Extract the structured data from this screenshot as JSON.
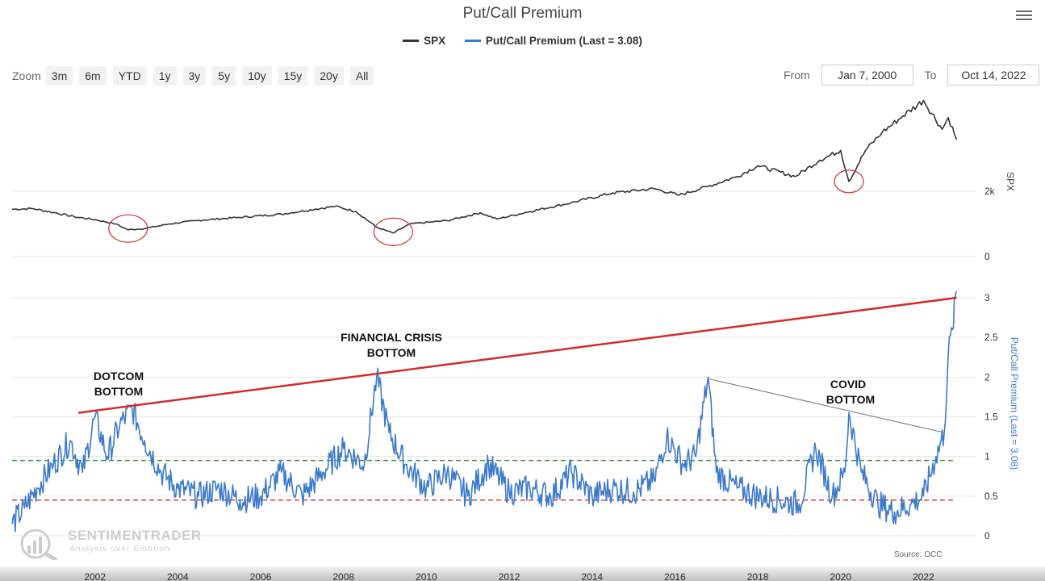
{
  "title": "Put/Call Premium",
  "legend": [
    {
      "name": "SPX",
      "color": "#333333"
    },
    {
      "name": "Put/Call Premium (Last = 3.08)",
      "color": "#3d7acb"
    }
  ],
  "zoom": {
    "label": "Zoom",
    "buttons": [
      "3m",
      "6m",
      "YTD",
      "1y",
      "3y",
      "5y",
      "10y",
      "15y",
      "20y",
      "All"
    ]
  },
  "range": {
    "from_label": "From",
    "from_value": "Jan 7, 2000",
    "to_label": "To",
    "to_value": "Oct 14, 2022"
  },
  "watermark": {
    "name": "SENTIMENTRADER",
    "tagline": "Analysis over Emotion"
  },
  "source": "Source: OCC",
  "chart_data": [
    {
      "type": "line",
      "series": [
        {
          "name": "SPX",
          "color": "#333333",
          "points": [
            [
              2000.0,
              1450
            ],
            [
              2000.5,
              1470
            ],
            [
              2001.0,
              1350
            ],
            [
              2001.5,
              1220
            ],
            [
              2002.0,
              1130
            ],
            [
              2002.5,
              1000
            ],
            [
              2002.8,
              820
            ],
            [
              2003.2,
              860
            ],
            [
              2003.8,
              1000
            ],
            [
              2004.5,
              1110
            ],
            [
              2005.5,
              1200
            ],
            [
              2006.5,
              1300
            ],
            [
              2007.3,
              1450
            ],
            [
              2007.8,
              1540
            ],
            [
              2008.3,
              1380
            ],
            [
              2008.8,
              900
            ],
            [
              2009.2,
              720
            ],
            [
              2009.6,
              1000
            ],
            [
              2010.5,
              1100
            ],
            [
              2011.3,
              1340
            ],
            [
              2011.7,
              1150
            ],
            [
              2012.5,
              1380
            ],
            [
              2013.5,
              1650
            ],
            [
              2014.5,
              1950
            ],
            [
              2015.5,
              2080
            ],
            [
              2016.1,
              1880
            ],
            [
              2016.8,
              2150
            ],
            [
              2017.5,
              2450
            ],
            [
              2018.0,
              2780
            ],
            [
              2018.9,
              2450
            ],
            [
              2019.5,
              2950
            ],
            [
              2020.0,
              3250
            ],
            [
              2020.2,
              2300
            ],
            [
              2020.6,
              3250
            ],
            [
              2021.0,
              3800
            ],
            [
              2021.5,
              4300
            ],
            [
              2022.0,
              4780
            ],
            [
              2022.45,
              3900
            ],
            [
              2022.6,
              4250
            ],
            [
              2022.8,
              3580
            ]
          ]
        }
      ],
      "ylabel": "SPX",
      "y_ticks": [
        "0",
        "2k"
      ],
      "ylim": [
        0,
        5400
      ]
    },
    {
      "type": "line",
      "series": [
        {
          "name": "Put/Call Premium (Last = 3.08)",
          "color": "#3d7acb",
          "points": [
            [
              2000.0,
              0.15
            ],
            [
              2000.3,
              0.35
            ],
            [
              2000.6,
              0.6
            ],
            [
              2001.0,
              0.9
            ],
            [
              2001.4,
              1.2
            ],
            [
              2001.7,
              0.8
            ],
            [
              2002.0,
              1.5
            ],
            [
              2002.3,
              1.0
            ],
            [
              2002.6,
              1.4
            ],
            [
              2002.9,
              1.6
            ],
            [
              2003.2,
              1.2
            ],
            [
              2003.6,
              0.8
            ],
            [
              2004.0,
              0.6
            ],
            [
              2004.5,
              0.5
            ],
            [
              2005.0,
              0.6
            ],
            [
              2005.5,
              0.45
            ],
            [
              2006.0,
              0.5
            ],
            [
              2006.5,
              0.8
            ],
            [
              2007.0,
              0.5
            ],
            [
              2007.5,
              0.8
            ],
            [
              2008.0,
              1.1
            ],
            [
              2008.5,
              0.9
            ],
            [
              2008.8,
              2.0
            ],
            [
              2009.1,
              1.3
            ],
            [
              2009.5,
              0.9
            ],
            [
              2010.0,
              0.6
            ],
            [
              2010.5,
              0.8
            ],
            [
              2011.0,
              0.5
            ],
            [
              2011.5,
              0.9
            ],
            [
              2012.0,
              0.55
            ],
            [
              2012.5,
              0.6
            ],
            [
              2013.0,
              0.5
            ],
            [
              2013.5,
              0.8
            ],
            [
              2014.0,
              0.5
            ],
            [
              2014.5,
              0.6
            ],
            [
              2015.0,
              0.55
            ],
            [
              2015.5,
              0.7
            ],
            [
              2015.8,
              1.25
            ],
            [
              2016.2,
              0.9
            ],
            [
              2016.5,
              1.0
            ],
            [
              2016.8,
              2.0
            ],
            [
              2017.0,
              0.8
            ],
            [
              2017.5,
              0.6
            ],
            [
              2018.0,
              0.5
            ],
            [
              2018.5,
              0.45
            ],
            [
              2019.0,
              0.4
            ],
            [
              2019.4,
              1.1
            ],
            [
              2019.8,
              0.5
            ],
            [
              2020.1,
              0.8
            ],
            [
              2020.2,
              1.55
            ],
            [
              2020.5,
              0.8
            ],
            [
              2020.9,
              0.4
            ],
            [
              2021.3,
              0.3
            ],
            [
              2021.7,
              0.4
            ],
            [
              2022.0,
              0.5
            ],
            [
              2022.3,
              1.0
            ],
            [
              2022.5,
              1.3
            ],
            [
              2022.6,
              2.3
            ],
            [
              2022.7,
              2.6
            ],
            [
              2022.79,
              3.08
            ]
          ]
        }
      ],
      "ylabel": "Put/Call Premium (Last = 3.08)",
      "y_ticks": [
        "0",
        "0.5",
        "1",
        "1.5",
        "2",
        "2.5",
        "3"
      ],
      "ylim": [
        0,
        3
      ],
      "reference_lines": [
        {
          "y": 0.95,
          "color": "#3a9a3a",
          "style": "dashed"
        },
        {
          "y": 0.45,
          "color": "#d04040",
          "style": "dashed"
        }
      ],
      "annotations": [
        "DOTCOM BOTTOM",
        "FINANCIAL CRISIS BOTTOM",
        "COVID BOTTOM"
      ],
      "trendlines": [
        {
          "color": "#d42a2a",
          "from": [
            2001.6,
            1.55
          ],
          "to": [
            2022.8,
            3.0
          ]
        },
        {
          "color": "#777777",
          "from": [
            2016.8,
            1.98
          ],
          "to": [
            2022.5,
            1.3
          ]
        }
      ]
    }
  ],
  "x_ticks": [
    "2002",
    "2004",
    "2006",
    "2008",
    "2010",
    "2012",
    "2014",
    "2016",
    "2018",
    "2020",
    "2022"
  ]
}
